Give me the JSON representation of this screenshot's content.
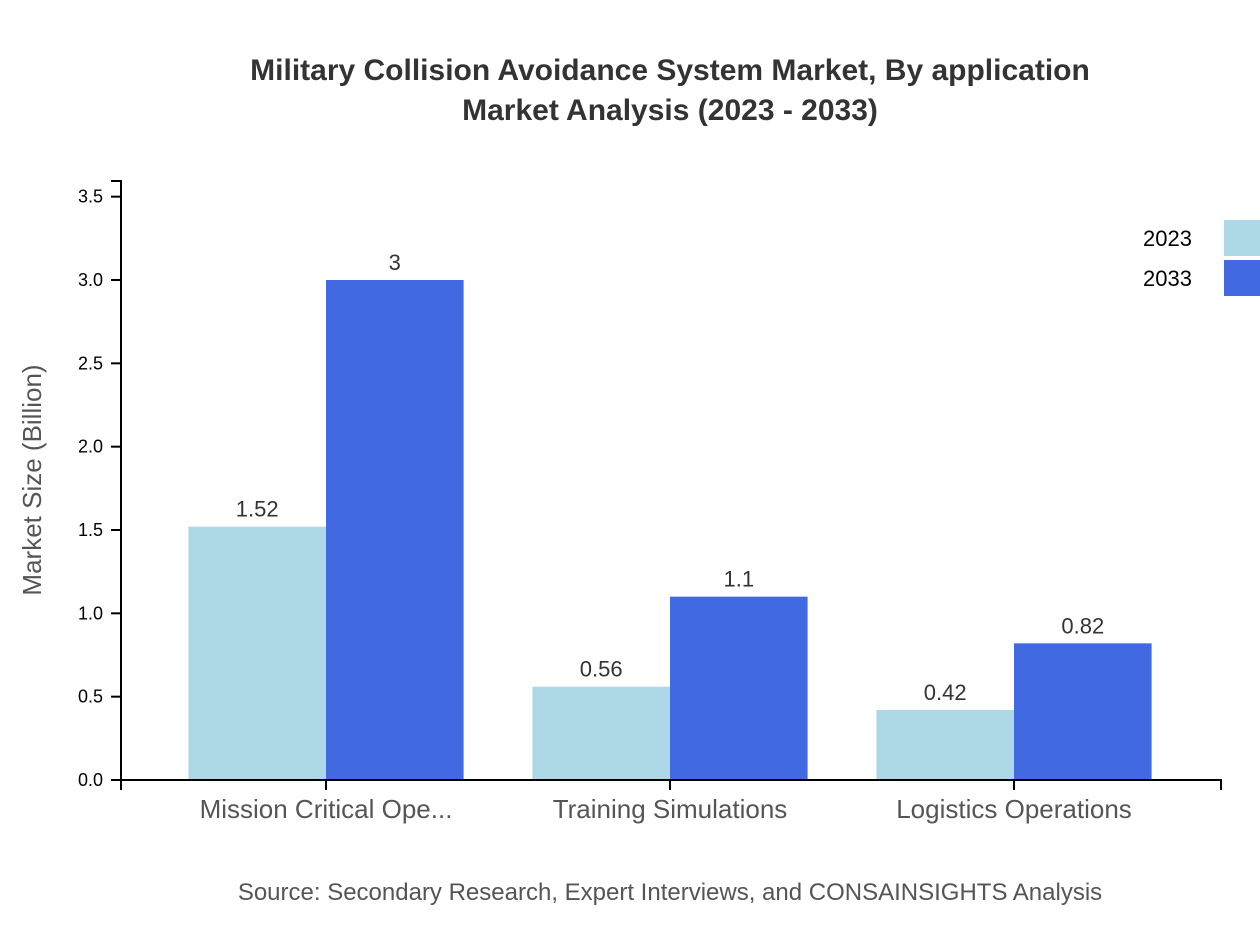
{
  "chart_data": {
    "type": "bar",
    "title": "Military Collision Avoidance System Market, By application",
    "subtitle": "Market Analysis (2023 - 2033)",
    "ylabel": "Market Size (Billion)",
    "xlabel": "",
    "ylim": [
      0,
      3.6
    ],
    "yticks": [
      "0.0",
      "0.5",
      "1.0",
      "1.5",
      "2.0",
      "2.5",
      "3.0",
      "3.5"
    ],
    "categories": [
      "Mission Critical Ope...",
      "Training Simulations",
      "Logistics Operations"
    ],
    "series": [
      {
        "name": "2023",
        "values": [
          1.52,
          0.56,
          0.42
        ],
        "labels": [
          "1.52",
          "0.56",
          "0.42"
        ],
        "color": "#add8e6"
      },
      {
        "name": "2033",
        "values": [
          3,
          1.1,
          0.82
        ],
        "labels": [
          "3",
          "1.1",
          "0.82"
        ],
        "color": "#4169e1"
      }
    ],
    "legend": "top-right",
    "grid": false,
    "source": "Source: Secondary Research, Expert Interviews, and CONSAINSIGHTS Analysis"
  }
}
